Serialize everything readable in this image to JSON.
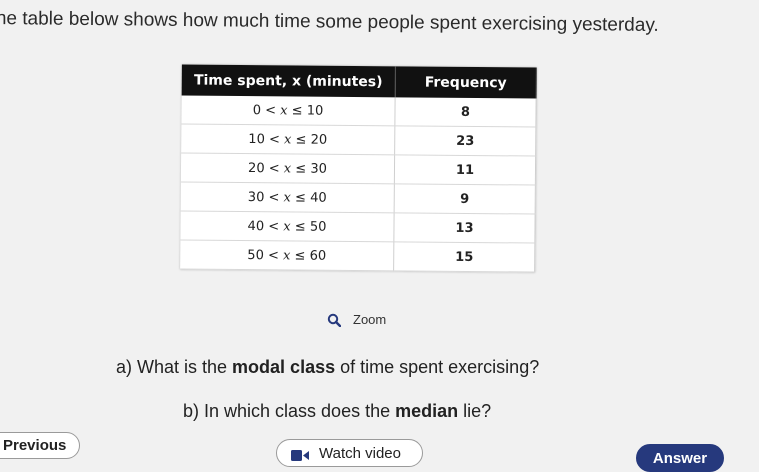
{
  "intro_text": "he table below shows how much time some people spent exercising yesterday.",
  "table": {
    "col1_header": "Time spent, x (minutes)",
    "col2_header": "Frequency",
    "rows": [
      {
        "class_lo": "0",
        "op1": "<",
        "var": "x",
        "op2": "≤",
        "class_hi": "10",
        "frequency": "8"
      },
      {
        "class_lo": "10",
        "op1": "<",
        "var": "x",
        "op2": "≤",
        "class_hi": "20",
        "frequency": "23"
      },
      {
        "class_lo": "20",
        "op1": "<",
        "var": "x",
        "op2": "≤",
        "class_hi": "30",
        "frequency": "11"
      },
      {
        "class_lo": "30",
        "op1": "<",
        "var": "x",
        "op2": "≤",
        "class_hi": "40",
        "frequency": "9"
      },
      {
        "class_lo": "40",
        "op1": "<",
        "var": "x",
        "op2": "≤",
        "class_hi": "50",
        "frequency": "13"
      },
      {
        "class_lo": "50",
        "op1": "<",
        "var": "x",
        "op2": "≤",
        "class_hi": "60",
        "frequency": "15"
      }
    ]
  },
  "zoom": {
    "label": "Zoom",
    "icon": "magnifier-icon"
  },
  "question_a": {
    "prefix": "a) What is the ",
    "bold": "modal class",
    "suffix": " of time spent exercising?"
  },
  "question_b": {
    "prefix": "b) In which class does the ",
    "bold": "median",
    "suffix": " lie?"
  },
  "buttons": {
    "previous": "Previous",
    "watch_video": "Watch video",
    "answer": "Answer"
  },
  "colors": {
    "answer_bg": "#26397d",
    "table_header_bg": "#111111",
    "zoom_icon": "#26397d"
  }
}
